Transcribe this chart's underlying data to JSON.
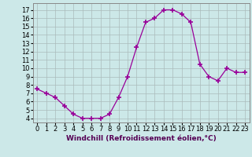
{
  "x": [
    0,
    1,
    2,
    3,
    4,
    5,
    6,
    7,
    8,
    9,
    10,
    11,
    12,
    13,
    14,
    15,
    16,
    17,
    18,
    19,
    20,
    21,
    22,
    23
  ],
  "y": [
    7.5,
    7.0,
    6.5,
    5.5,
    4.5,
    4.0,
    4.0,
    4.0,
    4.5,
    6.5,
    9.0,
    12.5,
    15.5,
    16.0,
    17.0,
    17.0,
    16.5,
    15.5,
    10.5,
    9.0,
    8.5,
    10.0,
    9.5,
    9.5
  ],
  "line_color": "#990099",
  "marker": "+",
  "marker_size": 4,
  "marker_lw": 1.2,
  "bg_color": "#cce8e8",
  "grid_color": "#aabbbb",
  "xlabel": "Windchill (Refroidissement éolien,°C)",
  "xlabel_fontsize": 6.5,
  "tick_fontsize": 6,
  "xlim": [
    -0.5,
    23.5
  ],
  "ylim": [
    3.5,
    17.8
  ],
  "yticks": [
    4,
    5,
    6,
    7,
    8,
    9,
    10,
    11,
    12,
    13,
    14,
    15,
    16,
    17
  ],
  "xticks": [
    0,
    1,
    2,
    3,
    4,
    5,
    6,
    7,
    8,
    9,
    10,
    11,
    12,
    13,
    14,
    15,
    16,
    17,
    18,
    19,
    20,
    21,
    22,
    23
  ]
}
